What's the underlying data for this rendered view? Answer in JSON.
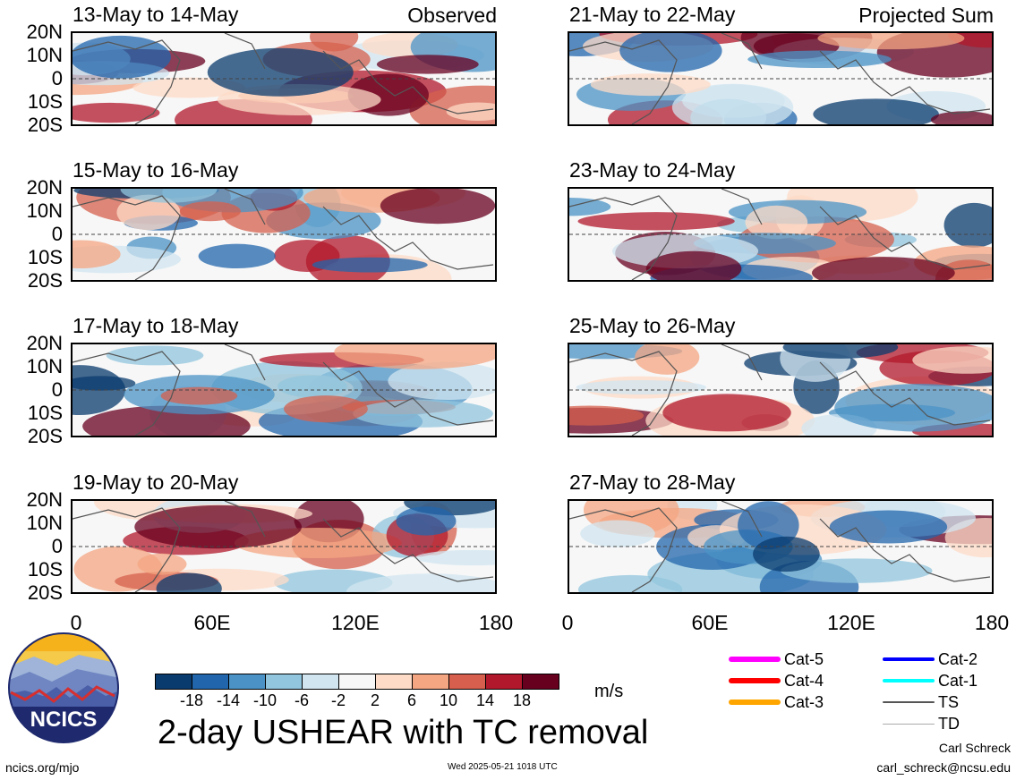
{
  "chart_data": {
    "type": "heatmap",
    "title": "2-day USHEAR with TC removal",
    "units": "m/s",
    "x_ticks": [
      "0",
      "60E",
      "120E",
      "180"
    ],
    "y_ticks": [
      "20N",
      "10N",
      "0",
      "10S",
      "20S"
    ],
    "xlim": [
      0,
      180
    ],
    "ylim": [
      -20,
      20
    ],
    "observed_label": "Observed",
    "projected_label": "Projected Sum",
    "panels_left": [
      {
        "title": "13-May to 14-May"
      },
      {
        "title": "15-May to 16-May"
      },
      {
        "title": "17-May to 18-May"
      },
      {
        "title": "19-May to 20-May"
      }
    ],
    "panels_right": [
      {
        "title": "21-May to 22-May"
      },
      {
        "title": "23-May to 24-May"
      },
      {
        "title": "25-May to 26-May"
      },
      {
        "title": "27-May to 28-May"
      }
    ],
    "colorbar": {
      "colors": [
        "#0a3b6e",
        "#2166ac",
        "#4b93c6",
        "#92c5de",
        "#d1e5f0",
        "#f7f7f7",
        "#fddbc7",
        "#f4a582",
        "#d6604d",
        "#b2182b",
        "#67001f"
      ],
      "labels": [
        "-18",
        "-14",
        "-10",
        "-6",
        "-2",
        "2",
        "6",
        "10",
        "14",
        "18"
      ]
    },
    "legend": [
      {
        "label": "Cat-5",
        "color": "#ff00ff"
      },
      {
        "label": "Cat-4",
        "color": "#ff0000"
      },
      {
        "label": "Cat-3",
        "color": "#ffa500"
      },
      {
        "label": "Cat-2",
        "color": "#0000ff"
      },
      {
        "label": "Cat-1",
        "color": "#00ffff"
      },
      {
        "label": "TS",
        "color": "#555555"
      },
      {
        "label": "TD",
        "color": "#aaaaaa"
      }
    ]
  },
  "footer": {
    "logo_text": "NCICS",
    "url": "ncics.org/mjo",
    "timestamp": "Wed 2025-05-21 1018 UTC",
    "author": "Carl Schreck",
    "email": "carl_schreck@ncsu.edu"
  }
}
